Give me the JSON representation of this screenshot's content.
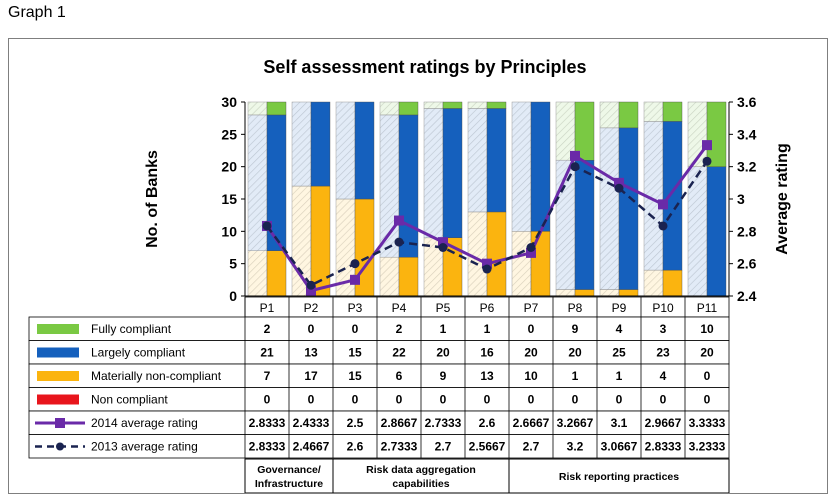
{
  "page_label": "Graph 1",
  "chart_data": {
    "type": "bar",
    "title": "Self assessment ratings by Principles",
    "ylabel": "No. of Banks",
    "y2label": "Average rating",
    "ylim": [
      0,
      30
    ],
    "y2lim": [
      2.4,
      3.6
    ],
    "yticks": [
      "0",
      "5",
      "10",
      "15",
      "20",
      "25",
      "30"
    ],
    "y2ticks": [
      "2.4",
      "2.6",
      "2.8",
      "3",
      "3.2",
      "3.4",
      "3.6"
    ],
    "categories": [
      "P1",
      "P2",
      "P3",
      "P4",
      "P5",
      "P6",
      "P7",
      "P8",
      "P9",
      "P10",
      "P11"
    ],
    "bar_series": [
      {
        "name": "Fully compliant",
        "color": "#7ac943",
        "values": [
          2,
          0,
          0,
          2,
          1,
          1,
          0,
          9,
          4,
          3,
          10
        ]
      },
      {
        "name": "Largely compliant",
        "color": "#1560bd",
        "values": [
          21,
          13,
          15,
          22,
          20,
          16,
          20,
          20,
          25,
          23,
          20
        ]
      },
      {
        "name": "Materially non-compliant",
        "color": "#fbb40f",
        "values": [
          7,
          17,
          15,
          6,
          9,
          13,
          10,
          1,
          1,
          4,
          0
        ]
      },
      {
        "name": "Non compliant",
        "color": "#e8151c",
        "values": [
          0,
          0,
          0,
          0,
          0,
          0,
          0,
          0,
          0,
          0,
          0
        ]
      }
    ],
    "line_series": [
      {
        "name": "2014 average rating",
        "color": "#6a2aa8",
        "style": "solid",
        "values": [
          2.8333,
          2.4333,
          2.5,
          2.8667,
          2.7333,
          2.6,
          2.6667,
          3.2667,
          3.1,
          2.9667,
          3.3333
        ],
        "labels": [
          "2.8333",
          "2.4333",
          "2.5",
          "2.8667",
          "2.7333",
          "2.6",
          "2.6667",
          "3.2667",
          "3.1",
          "2.9667",
          "3.3333"
        ]
      },
      {
        "name": "2013 average rating",
        "color": "#1a2350",
        "style": "dashed",
        "values": [
          2.8333,
          2.4667,
          2.6,
          2.7333,
          2.7,
          2.5667,
          2.7,
          3.2,
          3.0667,
          2.8333,
          3.2333
        ],
        "labels": [
          "2.8333",
          "2.4667",
          "2.6",
          "2.7333",
          "2.7",
          "2.5667",
          "2.7",
          "3.2",
          "3.0667",
          "2.8333",
          "3.2333"
        ]
      }
    ],
    "groups": [
      {
        "label": "Governance/ Infrastructure",
        "lines": [
          "Governance/",
          "Infrastructure"
        ],
        "span": [
          0,
          1
        ]
      },
      {
        "label": "Risk data aggregation capabilities",
        "lines": [
          "Risk data aggregation",
          "capabilities"
        ],
        "span": [
          2,
          5
        ]
      },
      {
        "label": "Risk reporting practices",
        "lines": [
          "Risk reporting practices"
        ],
        "span": [
          6,
          10
        ]
      }
    ],
    "grid": false,
    "legend": "table"
  }
}
